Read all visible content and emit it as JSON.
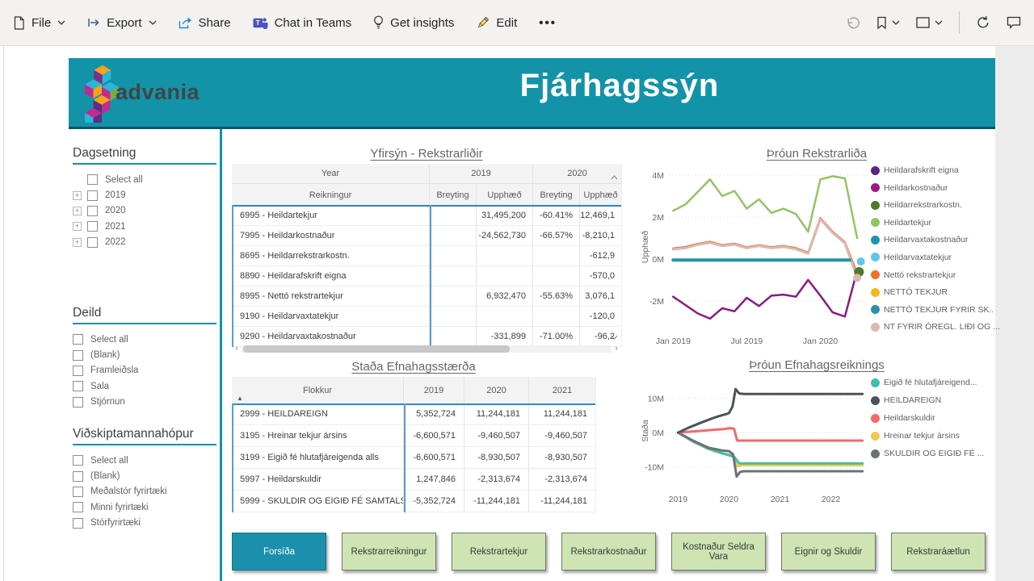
{
  "toolbar": {
    "file": "File",
    "export": "Export",
    "share": "Share",
    "teams": "Chat in Teams",
    "insights": "Get insights",
    "edit": "Edit",
    "more": "..."
  },
  "header": {
    "brand": "advania",
    "title": "Fjárhagssýn"
  },
  "colors": {
    "teal_accent": "#1293A8",
    "header_bg": "#1293A8",
    "table_accent_strong": "#2E86D2",
    "table_accent_light": "#5B9BD5",
    "nav_active_bg": "#1B8FAC",
    "nav_inactive_bg": "#CEE4B3"
  },
  "sidebar": {
    "groups": [
      {
        "title": "Dagsetning",
        "items": [
          {
            "label": "Select all",
            "expander": false,
            "indent": true
          },
          {
            "label": "2019",
            "expander": true
          },
          {
            "label": "2020",
            "expander": true
          },
          {
            "label": "2021",
            "expander": true
          },
          {
            "label": "2022",
            "expander": true
          }
        ]
      },
      {
        "title": "Deild",
        "items": [
          {
            "label": "Select all"
          },
          {
            "label": "(Blank)"
          },
          {
            "label": "Framleiðsla"
          },
          {
            "label": "Sala"
          },
          {
            "label": "Stjórnun"
          }
        ]
      },
      {
        "title": "Viðskiptamannahópur",
        "items": [
          {
            "label": "Select all"
          },
          {
            "label": "(Blank)"
          },
          {
            "label": "Meðalstór fyrirtæki"
          },
          {
            "label": "Minni fyrirtæki"
          },
          {
            "label": "Stórfyrirtæki"
          }
        ]
      }
    ]
  },
  "tables": [
    {
      "title": "Yfirsýn - Rekstrarliðir",
      "year_header": "Year",
      "year_groups": [
        "2019",
        "2020"
      ],
      "columns": [
        "Reikningur",
        "Breyting",
        "Upphæð",
        "Breyting",
        "Upphæð"
      ],
      "rows": [
        [
          "6995 - Heildartekjur",
          "",
          "31,495,200",
          "-60.41%",
          "12,469,1"
        ],
        [
          "7995 - Heildarkostnaður",
          "",
          "-24,562,730",
          "-66.57%",
          "-8,210,1"
        ],
        [
          "8695 - Heildarrekstrarkostn.",
          "",
          "",
          "",
          "-612,9"
        ],
        [
          "8890 - Heildarafskrift eigna",
          "",
          "",
          "",
          "-570,0"
        ],
        [
          "8995 - Nettó rekstrartekjur",
          "",
          "6,932,470",
          "-55.63%",
          "3,076,1"
        ],
        [
          "9190 - Heildarvaxtatekjur",
          "",
          "",
          "",
          "-120,0"
        ],
        [
          "9290 - Heildarvaxtakostnaður",
          "",
          "-331,899",
          "-71.00%",
          "-96,2"
        ]
      ]
    },
    {
      "title": "Staða Efnahagsstærða",
      "columns": [
        "Flokkur",
        "2019",
        "2020",
        "2021"
      ],
      "rows": [
        [
          "2999 - HEILDAREIGN",
          "5,352,724",
          "11,244,181",
          "11,244,181"
        ],
        [
          "3195 - Hreinar tekjur ársins",
          "-6,600,571",
          "-9,460,507",
          "-9,460,507"
        ],
        [
          "3199 - Eigið fé hlutafjáreigenda alls",
          "-6,600,571",
          "-8,930,507",
          "-8,930,507"
        ],
        [
          "5997 - Heildarskuldir",
          "1,247,846",
          "-2,313,674",
          "-2,313,674"
        ],
        [
          "5999 - SKULDIR OG EIGIÐ FÉ SAMTALS",
          "-5,352,724",
          "-11,244,181",
          "-11,244,181"
        ]
      ]
    }
  ],
  "chart_data": [
    {
      "type": "line",
      "title": "Þróun Rekstrarliða",
      "ylabel": "Upphæð",
      "unit": "millions",
      "ylim": [
        -3.2,
        4.35
      ],
      "xlim": [
        -0.35,
        15.85
      ],
      "yticks": [
        {
          "v": 4,
          "label": "4M"
        },
        {
          "v": 2,
          "label": "2M"
        },
        {
          "v": 0,
          "label": "0M"
        },
        {
          "v": -2,
          "label": "-2M"
        }
      ],
      "xticks": [
        {
          "v": 0,
          "label": "Jan 2019"
        },
        {
          "v": 6,
          "label": "Jul 2019"
        },
        {
          "v": 12,
          "label": "Jan 2020"
        }
      ],
      "series": [
        {
          "name": "Heildartekjur",
          "color": "#93C464",
          "width": 2.5,
          "y": [
            2.3,
            2.6,
            3.2,
            3.8,
            3.0,
            3.25,
            2.4,
            2.85,
            2.2,
            2.4,
            2.15,
            1.3,
            3.8,
            3.95,
            3.85,
            1.0
          ]
        },
        {
          "name": "Nettó rekstrartekjur",
          "color": "#E8732C",
          "width": 2.5,
          "y": [
            0.5,
            0.57,
            0.72,
            0.82,
            0.66,
            0.73,
            0.56,
            0.66,
            0.56,
            0.62,
            0.52,
            0.3,
            1.95,
            1.3,
            0.8,
            -0.7
          ]
        },
        {
          "name": "NT FYRIR ÓREGL. LIÐI OG ...",
          "color": "#DBB8B4",
          "width": 3,
          "y": [
            0.46,
            0.52,
            0.68,
            0.78,
            0.62,
            0.69,
            0.52,
            0.62,
            0.52,
            0.58,
            0.47,
            0.26,
            1.9,
            1.25,
            0.75,
            -0.9
          ]
        },
        {
          "name": "Heildarvaxtakostnaður",
          "color": "#1E96AE",
          "width": 4,
          "x": [
            0,
            14.4
          ],
          "y": [
            -0.05,
            -0.05
          ]
        },
        {
          "name": "Heildarkostnaður",
          "color": "#8B1A7E",
          "width": 2.5,
          "y": [
            -1.8,
            -2.2,
            -2.6,
            -2.85,
            -2.35,
            -2.5,
            -1.85,
            -2.25,
            -1.75,
            -1.7,
            -1.8,
            -1.0,
            -1.75,
            -2.55,
            -2.75,
            -0.55
          ]
        }
      ],
      "dots": [
        {
          "x": 15.3,
          "y": -0.12,
          "color": "#62C4E8",
          "r": 5
        },
        {
          "x": 15.15,
          "y": -0.62,
          "color": "#4E7A28",
          "r": 6
        },
        {
          "x": 15.0,
          "y": -0.9,
          "color": "#DBB8B4",
          "r": 5
        }
      ],
      "legend": [
        {
          "label": "Heildarafskrift eigna",
          "color": "#5C2483"
        },
        {
          "label": "Heildarkostnaður",
          "color": "#9B1889"
        },
        {
          "label": "Heildarrekstrarkostn.",
          "color": "#4E7A28"
        },
        {
          "label": "Heildartekjur",
          "color": "#93C464"
        },
        {
          "label": "Heildarvaxtakostnaður",
          "color": "#1E96AE"
        },
        {
          "label": "Heildarvaxtatekjur",
          "color": "#62C4E8"
        },
        {
          "label": "Nettó rekstrartekjur",
          "color": "#E8732C"
        },
        {
          "label": "NETTÓ TEKJUR",
          "color": "#F5B81C"
        },
        {
          "label": "NETTÓ TEKJUR FYRIR SK..",
          "color": "#2D8FA8"
        },
        {
          "label": "NT FYRIR ÓREGL. LIÐI OG ...",
          "color": "#DBB8B4"
        }
      ]
    },
    {
      "type": "line",
      "title": "Þróun Efnahagsreiknings",
      "ylabel": "Staða",
      "unit": "millions",
      "ylim": [
        -15,
        16
      ],
      "xlim": [
        2018.82,
        2022.72
      ],
      "yticks": [
        {
          "v": 10,
          "label": "10M"
        },
        {
          "v": 0,
          "label": "0M"
        },
        {
          "v": -10,
          "label": "-10M"
        }
      ],
      "xticks": [
        {
          "v": 2019,
          "label": "2019"
        },
        {
          "v": 2020,
          "label": "2020"
        },
        {
          "v": 2021,
          "label": "2021"
        },
        {
          "v": 2022,
          "label": "2022"
        }
      ],
      "series": [
        {
          "name": "Hreinar tekjur ársins",
          "color": "#EDC94C",
          "width": 3,
          "x": [
            2019,
            2019.3,
            2019.6,
            2019.87,
            2020.0,
            2020.1,
            2020.17,
            2020.25,
            2022.62
          ],
          "y": [
            0,
            -2.7,
            -4.8,
            -6.1,
            -6.6,
            -7.2,
            -9.8,
            -9.46,
            -9.46
          ]
        },
        {
          "name": "Eigið fé hlutafjáreigend...",
          "color": "#3CBFAE",
          "width": 3,
          "x": [
            2019,
            2019.3,
            2019.6,
            2019.87,
            2020.0,
            2020.1,
            2020.2,
            2022.62
          ],
          "y": [
            0,
            -2.6,
            -4.7,
            -6.0,
            -6.5,
            -7.0,
            -8.93,
            -8.93
          ]
        },
        {
          "name": "SKULDIR OG EIGIÐ FÉ ...",
          "color": "#6A7377",
          "width": 3,
          "x": [
            2019,
            2019.3,
            2019.6,
            2019.87,
            2020.0,
            2020.08,
            2020.15,
            2020.22,
            2020.3,
            2022.62
          ],
          "y": [
            0,
            -2.4,
            -4.4,
            -5.2,
            -5.4,
            -6.3,
            -12.8,
            -11.4,
            -11.24,
            -11.24
          ]
        },
        {
          "name": "Heildarskuldir",
          "color": "#F16A6A",
          "width": 3,
          "x": [
            2019,
            2019.3,
            2019.6,
            2019.9,
            2020.02,
            2020.1,
            2020.16,
            2020.2,
            2022.62
          ],
          "y": [
            0,
            0.35,
            0.7,
            1.05,
            1.3,
            1.1,
            -2.3,
            -2.31,
            -2.31
          ]
        },
        {
          "name": "HEILDAREIGN",
          "color": "#4A5459",
          "width": 3,
          "x": [
            2019,
            2019.2,
            2019.45,
            2019.7,
            2019.87,
            2019.95,
            2020.0,
            2020.07,
            2020.13,
            2020.2,
            2020.3,
            2022.62
          ],
          "y": [
            0,
            1.4,
            2.9,
            4.3,
            5.1,
            5.4,
            5.7,
            7.6,
            12.7,
            11.4,
            11.24,
            11.24
          ]
        }
      ],
      "legend": [
        {
          "label": "Eigið fé hlutafjáreigend...",
          "color": "#3CBFAE"
        },
        {
          "label": "HEILDAREIGN",
          "color": "#4A5459"
        },
        {
          "label": "Heildarskuldir",
          "color": "#F16A6A"
        },
        {
          "label": "Hreinar tekjur ársins",
          "color": "#EDC94C"
        },
        {
          "label": "SKULDIR OG EIGIÐ FÉ ...",
          "color": "#6A7377"
        }
      ]
    }
  ],
  "nav": {
    "active_index": 0,
    "items": [
      "Forsíða",
      "Rekstrarreikningur",
      "Rekstrartekjur",
      "Rekstrarkostnaður",
      "Kostnaður Seldra Vara",
      "Eignir og Skuldir",
      "Rekstraráætlun"
    ]
  }
}
